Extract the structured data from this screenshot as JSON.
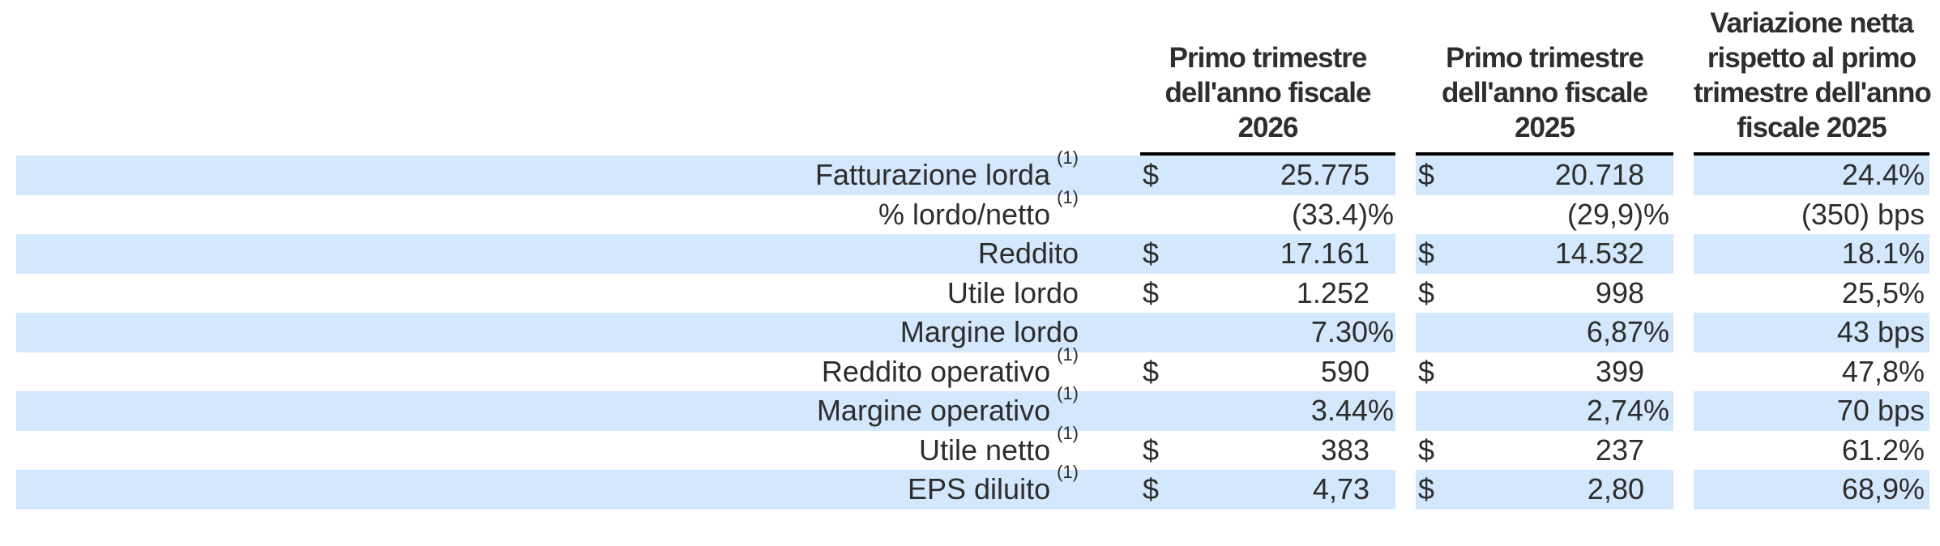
{
  "table": {
    "description": "Quarterly financial results summary table (Italian)",
    "headers": {
      "col1": [
        "Primo trimestre",
        "dell'anno fiscale",
        "2026"
      ],
      "col2": [
        "Primo trimestre",
        "dell'anno fiscale",
        "2025"
      ],
      "col3": [
        "Variazione netta",
        "rispetto al primo",
        "trimestre dell'anno",
        "fiscale 2025"
      ]
    },
    "rows": [
      {
        "label": "Fatturazione lorda",
        "fn": "(1)",
        "cur1": "$",
        "cur2": "$",
        "v2026": "25.775",
        "v2025": "20.718",
        "chg": "24.4%"
      },
      {
        "label": "% lordo/netto",
        "fn": "(1)",
        "cur1": "",
        "cur2": "",
        "v2026": "(33.4)%",
        "v2025": "(29,9)%",
        "chg": "(350) bps"
      },
      {
        "label": "Reddito",
        "fn": "",
        "cur1": "$",
        "cur2": "$",
        "v2026": "17.161",
        "v2025": "14.532",
        "chg": "18.1%"
      },
      {
        "label": "Utile lordo",
        "fn": "",
        "cur1": "$",
        "cur2": "$",
        "v2026": "1.252",
        "v2025": "998",
        "chg": "25,5%"
      },
      {
        "label": "Margine lordo",
        "fn": "",
        "cur1": "",
        "cur2": "",
        "v2026": "7.30%",
        "v2025": "6,87%",
        "chg": "43 bps"
      },
      {
        "label": "Reddito operativo",
        "fn": "(1)",
        "cur1": "$",
        "cur2": "$",
        "v2026": "590",
        "v2025": "399",
        "chg": "47,8%"
      },
      {
        "label": "Margine operativo",
        "fn": "(1)",
        "cur1": "",
        "cur2": "",
        "v2026": "3.44%",
        "v2025": "2,74%",
        "chg": "70 bps"
      },
      {
        "label": "Utile netto",
        "fn": "(1)",
        "cur1": "$",
        "cur2": "$",
        "v2026": "383",
        "v2025": "237",
        "chg": "61.2%"
      },
      {
        "label": "EPS diluito",
        "fn": "(1)",
        "cur1": "$",
        "cur2": "$",
        "v2026": "4,73",
        "v2025": "2,80",
        "chg": "68,9%"
      }
    ],
    "colors": {
      "row_highlight": "#d3e8fc",
      "text": "#2d2d2d",
      "header_rule": "#000000",
      "background": "#ffffff"
    }
  }
}
